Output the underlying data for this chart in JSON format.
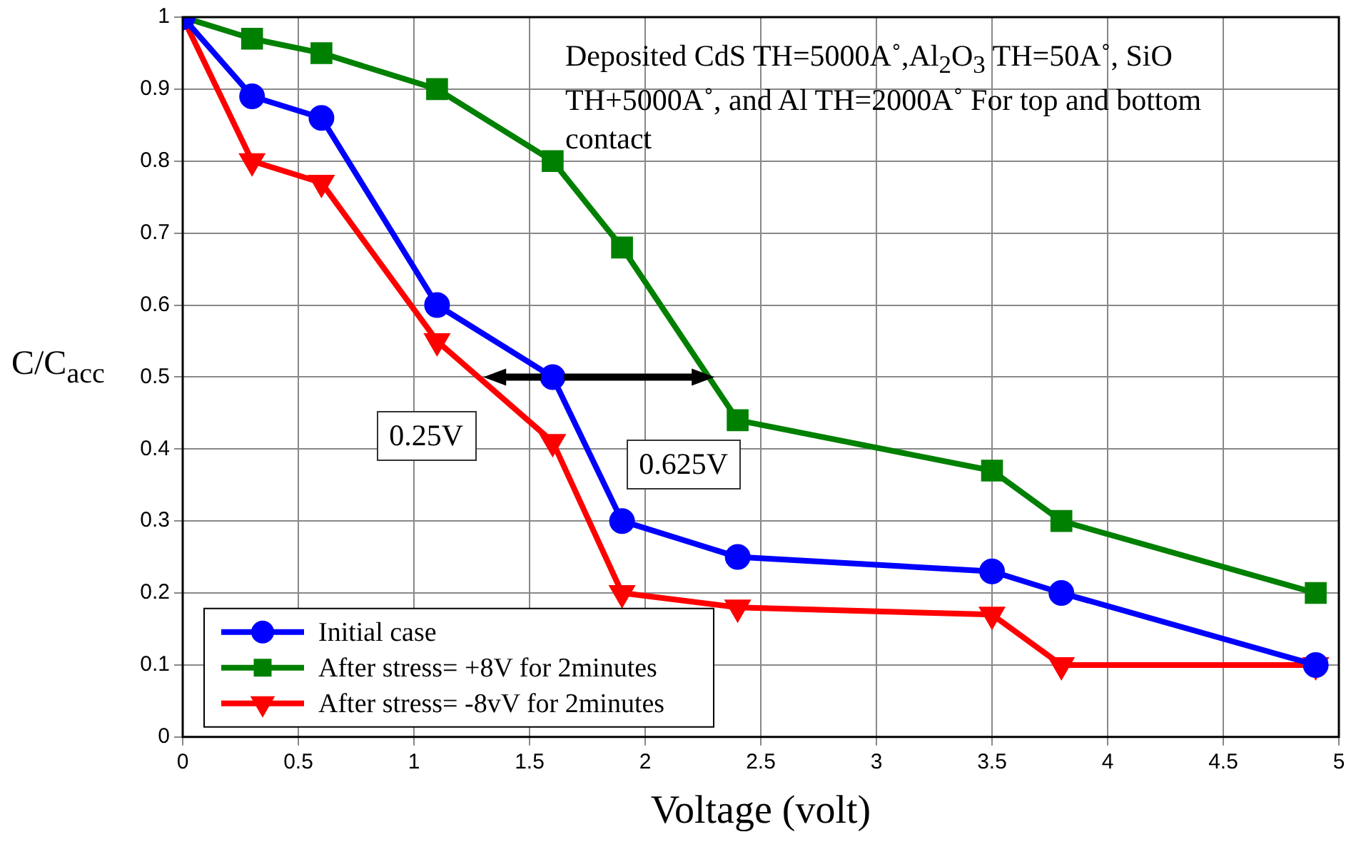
{
  "chart_data": {
    "type": "line",
    "xlabel": "Voltage (volt)",
    "ylabel": "C/C$_{acc}$",
    "x": [
      0,
      0.3,
      0.6,
      1.1,
      1.6,
      1.9,
      2.4,
      3.5,
      3.8,
      4.9
    ],
    "series": [
      {
        "name": "Initial case",
        "color": "#0000ff",
        "marker": "circle",
        "values": [
          1,
          0.89,
          0.86,
          0.6,
          0.5,
          0.3,
          0.25,
          0.23,
          0.2,
          0.1
        ]
      },
      {
        "name": "After stress= +8V for 2minutes",
        "color": "#008000",
        "marker": "square",
        "values": [
          1,
          0.97,
          0.95,
          0.9,
          0.8,
          0.68,
          0.44,
          0.37,
          0.3,
          0.2
        ]
      },
      {
        "name": "After stress= -8vV for 2minutes",
        "color": "#ff0000",
        "marker": "triangle",
        "values": [
          1,
          0.8,
          0.77,
          0.55,
          0.41,
          0.2,
          0.18,
          0.17,
          0.1,
          0.1
        ]
      }
    ],
    "xlim": [
      0,
      5
    ],
    "xticks": [
      0,
      0.5,
      1,
      1.5,
      2,
      2.5,
      3,
      3.5,
      4,
      4.5,
      5
    ],
    "ylim": [
      0,
      1
    ],
    "yticks": [
      0,
      0.1,
      0.2,
      0.3,
      0.4,
      0.5,
      0.6,
      0.7,
      0.8,
      0.9,
      1
    ],
    "grid": true,
    "legend": "bottom left",
    "line_style": "solid",
    "annotations": [
      "Deposited CdS TH=5000A˚,Al$_{2}$O$_{3}$ TH=50A˚, SiO TH+5000A˚, and Al TH=2000A˚ For top and bottom contact",
      {
        "text": "0.25V",
        "x": 1.3,
        "y": 0.5
      },
      {
        "text": "0.625V",
        "x": 2.3,
        "y": 0.5
      }
    ]
  }
}
